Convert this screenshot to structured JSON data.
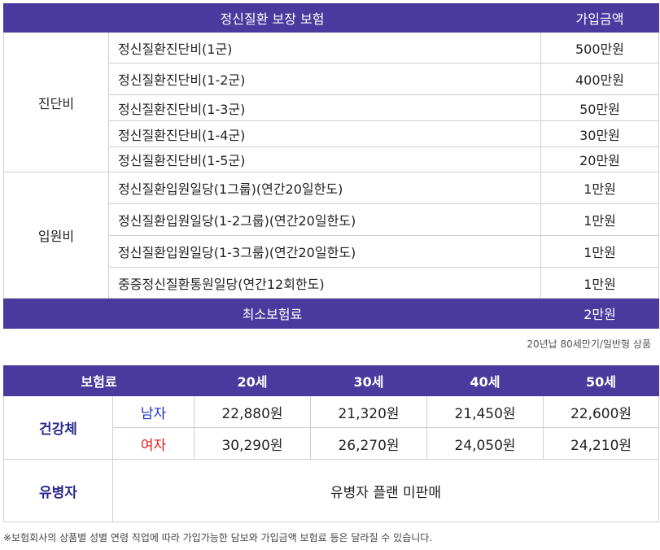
{
  "coverage_table": {
    "headers": {
      "coverage": "정신질환 보장 보험",
      "amount": "가입금액"
    },
    "groups": [
      {
        "category": "진단비",
        "rows": [
          {
            "item": "정신질환진단비(1군)",
            "amount": "500만원"
          },
          {
            "item": "정신질환진단비(1-2군)",
            "amount": "400만원"
          },
          {
            "item": "정신질환진단비(1-3군)",
            "amount": "50만원"
          },
          {
            "item": "정신질환진단비(1-4군)",
            "amount": "30만원"
          },
          {
            "item": "정신질환진단비(1-5군)",
            "amount": "20만원"
          }
        ]
      },
      {
        "category": "입원비",
        "rows": [
          {
            "item": "정신질환입원일당(1그룹)(연간20일한도)",
            "amount": "1만원"
          },
          {
            "item": "정신질환입원일당(1-2그룹)(연간20일한도)",
            "amount": "1만원"
          },
          {
            "item": "정신질환입원일당(1-3그룹)(연간20일한도)",
            "amount": "1만원"
          },
          {
            "item": "중증정신질환통원일당(연간12회한도)",
            "amount": "1만원"
          }
        ]
      }
    ],
    "minimum": {
      "label": "최소보험료",
      "amount": "2만원"
    }
  },
  "product_note": "20년납 80세만기/일반형 상품",
  "premium_table": {
    "header_label": "보험료",
    "ages": [
      "20세",
      "30세",
      "40세",
      "50세"
    ],
    "healthy": {
      "label": "건강체",
      "male": {
        "label": "남자",
        "values": [
          "22,880원",
          "21,320원",
          "21,450원",
          "22,600원"
        ]
      },
      "female": {
        "label": "여자",
        "values": [
          "30,290원",
          "26,270원",
          "24,050원",
          "24,210원"
        ]
      }
    },
    "sick": {
      "label": "유병자",
      "text": "유병자 플랜 미판매"
    }
  },
  "footnote": "※보험회사의 상품별 성별 연령 직업에 따라 가입가능한 담보와 가입금액 보험료 등은 달라질 수 있습니다.",
  "colors": {
    "header_purple": "#4b3a9e",
    "male_blue": "#1f2fc9",
    "female_red": "#e01a1a",
    "group_navy": "#2c2a8c"
  }
}
